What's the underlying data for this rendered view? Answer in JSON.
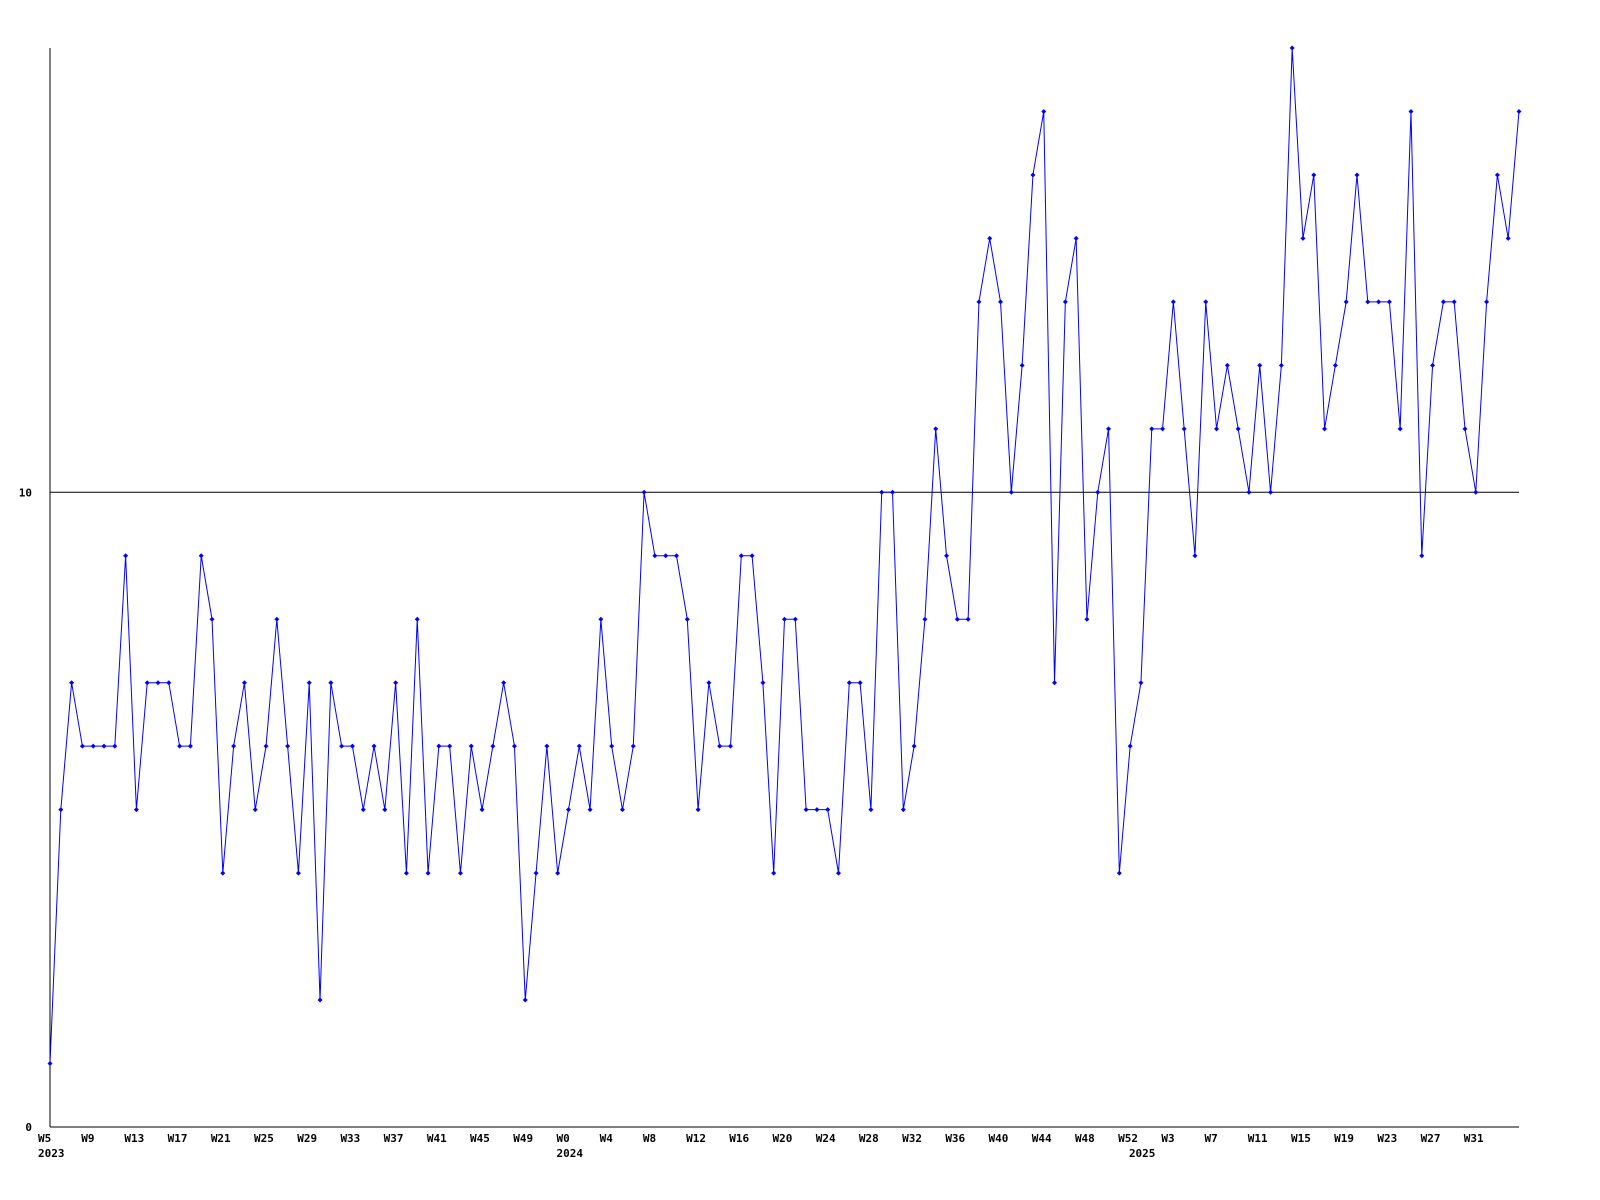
{
  "chart_data": {
    "type": "line",
    "categories": [
      "W5",
      null,
      null,
      null,
      "W9",
      null,
      null,
      null,
      "W13",
      null,
      null,
      null,
      "W17",
      null,
      null,
      null,
      "W21",
      null,
      null,
      null,
      "W25",
      null,
      null,
      null,
      "W29",
      null,
      null,
      null,
      "W33",
      null,
      null,
      null,
      "W37",
      null,
      null,
      null,
      "W41",
      null,
      null,
      null,
      "W45",
      null,
      null,
      null,
      "W49",
      null,
      null,
      null,
      "W0",
      null,
      null,
      null,
      "W4",
      null,
      null,
      null,
      "W8",
      null,
      null,
      null,
      "W12",
      null,
      null,
      null,
      "W16",
      null,
      null,
      null,
      "W20",
      null,
      null,
      null,
      "W24",
      null,
      null,
      null,
      "W28",
      null,
      null,
      null,
      "W32",
      null,
      null,
      null,
      "W36",
      null,
      null,
      null,
      "W40",
      null,
      null,
      null,
      "W44",
      null,
      null,
      null,
      "W48",
      null,
      null,
      null,
      "W52",
      null,
      null,
      null,
      "W3",
      null,
      null,
      null,
      "W7",
      null,
      null,
      null,
      "W11",
      null,
      null,
      null,
      "W15",
      null,
      null,
      null,
      "W19",
      null,
      null,
      null,
      "W23",
      null,
      null,
      null,
      "W27",
      null,
      null,
      null,
      "W31",
      null,
      null,
      null,
      null
    ],
    "x_year_labels": [
      "2023",
      null,
      null,
      null,
      null,
      null,
      null,
      null,
      null,
      null,
      null,
      null,
      null,
      null,
      null,
      null,
      null,
      null,
      null,
      null,
      null,
      null,
      null,
      null,
      null,
      null,
      null,
      null,
      null,
      null,
      null,
      null,
      null,
      null,
      null,
      null,
      null,
      null,
      null,
      null,
      null,
      null,
      null,
      null,
      null,
      null,
      null,
      null,
      "2024",
      null,
      null,
      null,
      null,
      null,
      null,
      null,
      null,
      null,
      null,
      null,
      null,
      null,
      null,
      null,
      null,
      null,
      null,
      null,
      null,
      null,
      null,
      null,
      null,
      null,
      null,
      null,
      null,
      null,
      null,
      null,
      null,
      null,
      null,
      null,
      null,
      null,
      null,
      null,
      null,
      null,
      null,
      null,
      null,
      null,
      null,
      null,
      null,
      null,
      null,
      null,
      null,
      "2025",
      null,
      null,
      null,
      null,
      null,
      null,
      null,
      null,
      null,
      null,
      null,
      null,
      null,
      null,
      null,
      null,
      null,
      null,
      null,
      null,
      null,
      null,
      null,
      null,
      null,
      null,
      null,
      null,
      null,
      null,
      null,
      null,
      null,
      null,
      null
    ],
    "series": [
      {
        "color": "#0000ff",
        "values": [
          1,
          5,
          7,
          6,
          6,
          6,
          6,
          9,
          5,
          7,
          7,
          7,
          6,
          6,
          9,
          8,
          4,
          6,
          7,
          5,
          6,
          8,
          6,
          4,
          7,
          2,
          7,
          6,
          6,
          5,
          6,
          5,
          7,
          4,
          8,
          4,
          6,
          6,
          4,
          6,
          5,
          6,
          7,
          6,
          2,
          4,
          6,
          4,
          5,
          6,
          5,
          8,
          6,
          5,
          6,
          10,
          9,
          9,
          9,
          8,
          5,
          7,
          6,
          6,
          9,
          9,
          7,
          4,
          8,
          8,
          5,
          5,
          5,
          4,
          7,
          7,
          5,
          10,
          10,
          5,
          6,
          8,
          11,
          9,
          8,
          8,
          13,
          14,
          13,
          10,
          12,
          15,
          16,
          7,
          13,
          14,
          8,
          10,
          11,
          4,
          6,
          7,
          11,
          11,
          13,
          11,
          9,
          13,
          11,
          12,
          11,
          10,
          12,
          10,
          12,
          17,
          14,
          15,
          11,
          12,
          13,
          15,
          13,
          13,
          13,
          11,
          16,
          9,
          12,
          13,
          13,
          11,
          10,
          13,
          15,
          14,
          16
        ]
      }
    ],
    "ylim": [
      0,
      17
    ],
    "yticks": [
      0,
      10
    ],
    "grid": true
  }
}
